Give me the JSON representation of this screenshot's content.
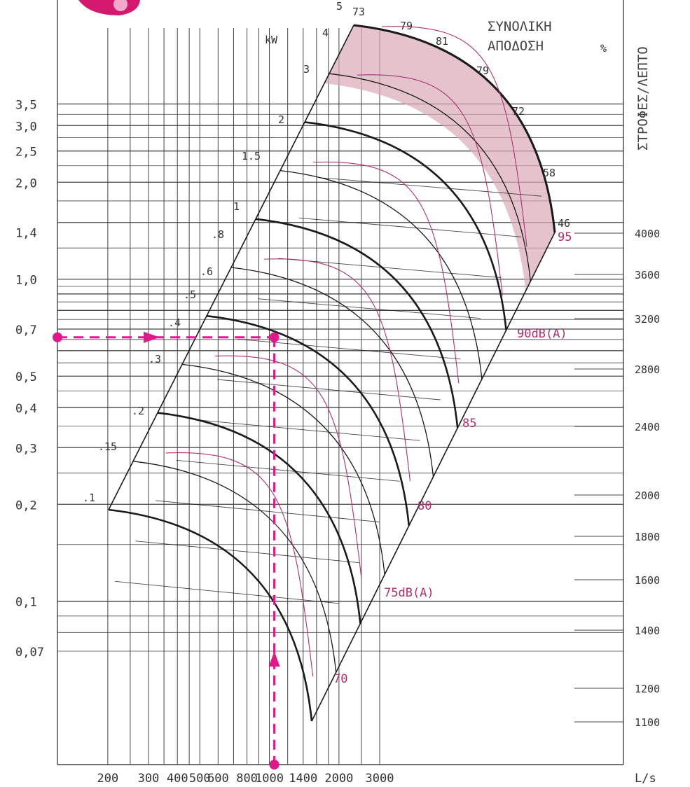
{
  "chart_data": {
    "type": "line",
    "title": "ΣΥΝΟΛΙΚΗ ΑΠΟΔΟΣΗ",
    "percent_symbol": "%",
    "kw_label": "kW",
    "xlabel": "L/s",
    "right_axis_label": "ΣΤΡΟΦΕΣ/ΛΕΠΤΟ",
    "x_ticks": [
      "200",
      "300",
      "400",
      "500",
      "600",
      "800",
      "1000",
      "1400",
      "2000",
      "3000"
    ],
    "y_ticks": [
      "3,5",
      "3,0",
      "2,5",
      "2,0",
      "1,4",
      "1,0",
      "0,7",
      "0,5",
      "0,4",
      "0,3",
      "0,2",
      "0,1",
      "0,07"
    ],
    "rpm_ticks": [
      "4000",
      "3600",
      "3200",
      "2800",
      "2400",
      "2000",
      "1800",
      "1600",
      "1400",
      "1200",
      "1100"
    ],
    "kw_labels": [
      "5",
      "4",
      "3",
      "2",
      "1.5",
      "1",
      ".8",
      ".6",
      ".5",
      ".4",
      ".3",
      ".2",
      ".15",
      ".1"
    ],
    "efficiency_labels": [
      "73",
      "79",
      "81",
      "79",
      "72",
      "58",
      "46"
    ],
    "noise_labels": [
      "95",
      "90dB(A)",
      "85",
      "80",
      "75dB(A)",
      "70"
    ],
    "example": {
      "flow": 1050,
      "pressure": 0.66
    },
    "colors": {
      "accent": "#e0188a",
      "grid": "#444444",
      "curve": "#1a1a1a",
      "noise": "#b03070",
      "shade": "#d9a9b8"
    }
  }
}
